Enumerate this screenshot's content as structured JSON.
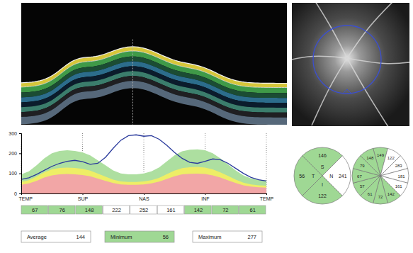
{
  "chart_data": [
    {
      "type": "line",
      "xlim": [
        0,
        256
      ],
      "xticks": [
        {
          "value": 0,
          "label": "TEMP"
        },
        {
          "value": 64,
          "label": "SUP"
        },
        {
          "value": 128,
          "label": "NAS"
        },
        {
          "value": 192,
          "label": "INF"
        },
        {
          "value": 256,
          "label": "TEMP"
        }
      ],
      "ylim": [
        0,
        300
      ],
      "yticks": [
        0,
        100,
        200,
        300
      ],
      "grid": true,
      "x": [
        0,
        8,
        16,
        24,
        32,
        40,
        48,
        56,
        64,
        72,
        80,
        88,
        96,
        104,
        112,
        120,
        128,
        136,
        144,
        152,
        160,
        168,
        176,
        184,
        192,
        200,
        208,
        216,
        224,
        232,
        240,
        248,
        256
      ],
      "series": [
        {
          "type": "area",
          "color": "#addfa0",
          "values": [
            95,
            110,
            140,
            175,
            200,
            212,
            215,
            212,
            205,
            190,
            165,
            140,
            115,
            100,
            95,
            95,
            100,
            110,
            130,
            160,
            190,
            210,
            218,
            220,
            215,
            200,
            175,
            145,
            115,
            90,
            75,
            68,
            65
          ]
        },
        {
          "type": "area",
          "color": "#eeee66",
          "values": [
            57,
            66,
            84,
            105,
            120,
            127,
            129,
            127,
            123,
            114,
            99,
            84,
            69,
            60,
            57,
            57,
            60,
            66,
            78,
            96,
            114,
            126,
            131,
            132,
            129,
            120,
            105,
            87,
            69,
            54,
            45,
            41,
            39
          ]
        },
        {
          "type": "area",
          "color": "#f2a6a6",
          "values": [
            43,
            50,
            63,
            79,
            90,
            95,
            97,
            95,
            92,
            86,
            74,
            63,
            52,
            45,
            43,
            43,
            45,
            50,
            59,
            72,
            86,
            95,
            98,
            99,
            97,
            90,
            79,
            65,
            52,
            41,
            34,
            31,
            29
          ]
        },
        {
          "type": "line",
          "color": "#2a3a9c",
          "values": [
            70,
            78,
            95,
            115,
            135,
            150,
            160,
            165,
            158,
            145,
            150,
            180,
            225,
            265,
            288,
            292,
            285,
            288,
            270,
            240,
            205,
            175,
            155,
            150,
            160,
            172,
            168,
            150,
            125,
            100,
            80,
            68,
            62
          ]
        }
      ]
    },
    {
      "type": "sectors",
      "categories": [
        "S",
        "N",
        "I",
        "T"
      ],
      "values": [
        146,
        241,
        122,
        56
      ],
      "colors": [
        "#9fd894",
        "#ffffff",
        "#9fd894",
        "#9fd894"
      ],
      "data_labels": true
    },
    {
      "type": "sectors",
      "values": [
        149,
        122,
        283,
        181,
        161,
        142,
        72,
        61,
        57,
        67,
        79,
        148
      ],
      "colors": [
        "#9fd894",
        "#ffffff",
        "#ffffff",
        "#ffffff",
        "#ffffff",
        "#9fd894",
        "#9fd894",
        "#9fd894",
        "#9fd894",
        "#9fd894",
        "#9fd894",
        "#9fd894"
      ],
      "data_labels": true
    }
  ],
  "table": {
    "cells": [
      67,
      76,
      148,
      222,
      252,
      161,
      142,
      72,
      61
    ],
    "colors": [
      "#9fd894",
      "#9fd894",
      "#9fd894",
      "#ffffff",
      "#ffffff",
      "#ffffff",
      "#9fd894",
      "#9fd894",
      "#9fd894"
    ]
  },
  "summary": [
    {
      "label": "Average",
      "value": 144,
      "color": "#ffffff"
    },
    {
      "label": "Minimum",
      "value": 56,
      "color": "#9fd894"
    },
    {
      "label": "Maximum",
      "value": 277,
      "color": "#ffffff"
    }
  ]
}
